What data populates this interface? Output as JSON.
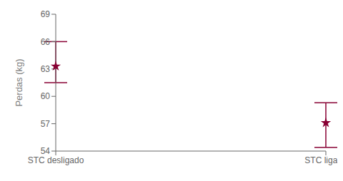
{
  "chart_data": {
    "type": "errorbar",
    "categories": [
      "STC desligado",
      "STC ligado"
    ],
    "values": [
      63.3,
      57.1
    ],
    "error_lower": [
      1.8,
      2.7
    ],
    "error_upper": [
      2.7,
      2.2
    ],
    "ylabel": "Perdas (kg)",
    "ylim": [
      54,
      69
    ],
    "yticks": [
      54,
      57,
      60,
      63,
      66,
      69
    ],
    "color": "#880033",
    "marker": "star",
    "grid": false
  }
}
